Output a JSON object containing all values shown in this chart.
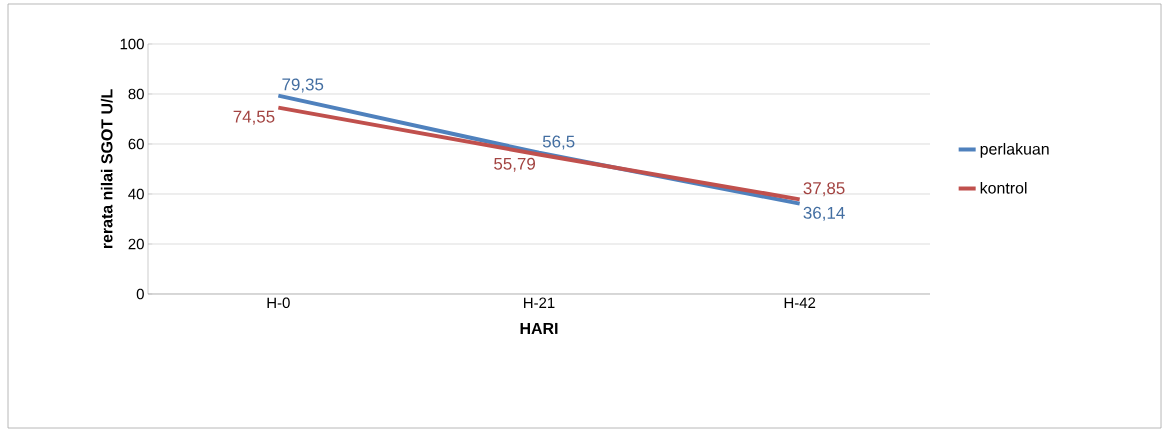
{
  "chart_data": {
    "type": "line",
    "xlabel": "HARI",
    "ylabel": "rerata nilai SGOT U/L",
    "categories": [
      "H-0",
      "H-21",
      "H-42"
    ],
    "ylim": [
      0,
      100
    ],
    "yticks": [
      0,
      20,
      40,
      60,
      80,
      100
    ],
    "grid": "y",
    "legend": "right",
    "series": [
      {
        "name": "perlakuan",
        "color": "#4f81bd",
        "values": [
          79.35,
          56.5,
          36.14
        ],
        "value_labels": [
          "79,35",
          "56,5",
          "36,14"
        ]
      },
      {
        "name": "kontrol",
        "color": "#c0504d",
        "values": [
          74.55,
          55.79,
          37.85
        ],
        "value_labels": [
          "74,55",
          "55,79",
          "37,85"
        ]
      }
    ]
  }
}
